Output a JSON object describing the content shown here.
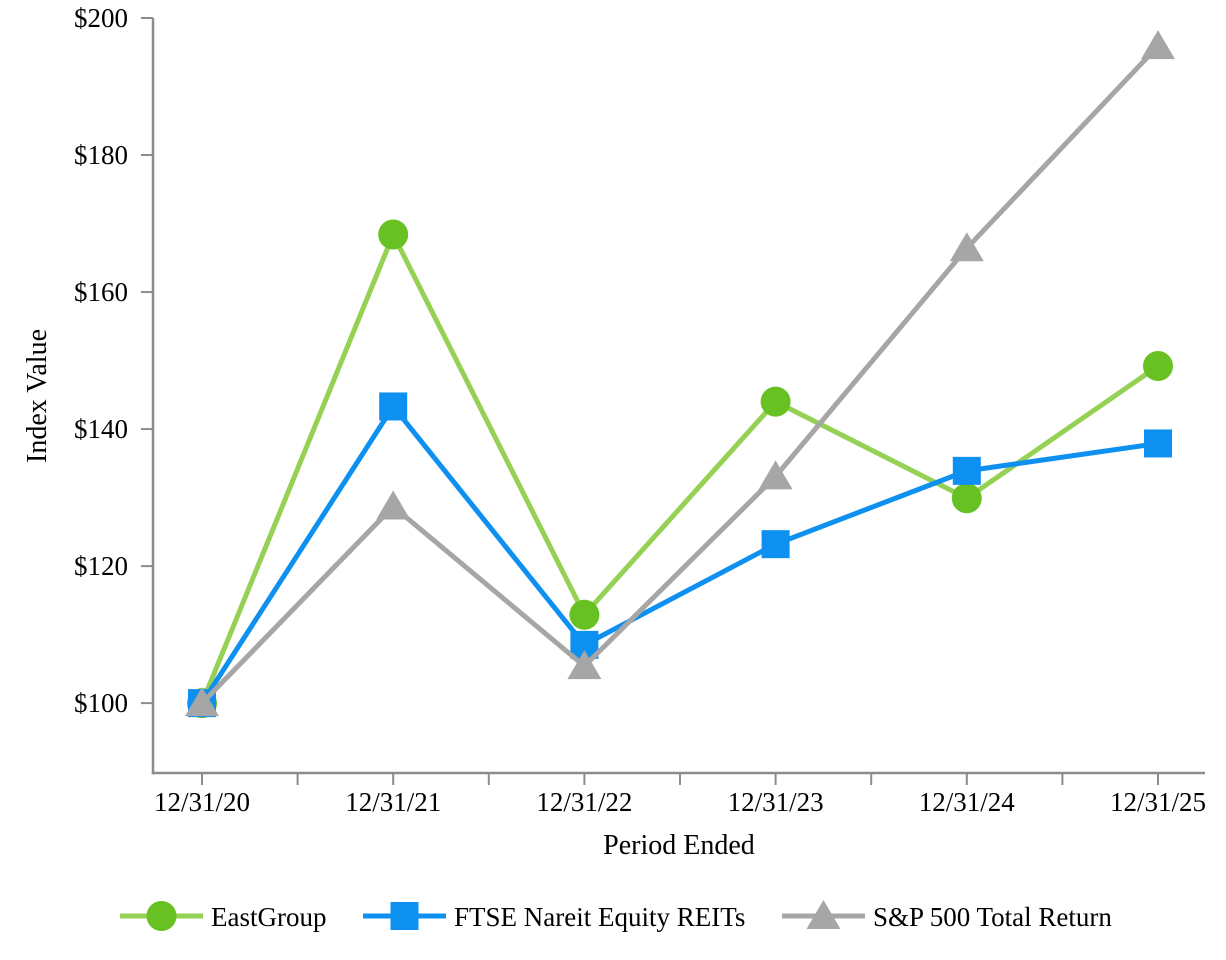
{
  "chart_data": {
    "type": "line",
    "title": "",
    "xlabel": "Period Ended",
    "ylabel": "Index Value",
    "categories": [
      "12/31/20",
      "12/31/21",
      "12/31/22",
      "12/31/23",
      "12/31/24",
      "12/31/25"
    ],
    "series": [
      {
        "name": "EastGroup",
        "marker": "circle",
        "marker_color": "#68c122",
        "line_color": "#95d154",
        "values": [
          100.0,
          168.4,
          112.9,
          144.0,
          129.9,
          149.2
        ]
      },
      {
        "name": "FTSE Nareit Equity REITs",
        "marker": "square",
        "marker_color": "#0e90f0",
        "line_color": "#0e90f0",
        "values": [
          100.0,
          143.3,
          108.5,
          123.2,
          133.9,
          137.9
        ]
      },
      {
        "name": "S&P 500 Total Return",
        "marker": "triangle",
        "marker_color": "#a6a6a6",
        "line_color": "#a6a6a6",
        "values": [
          100.0,
          128.7,
          105.4,
          133.1,
          166.4,
          195.9
        ]
      }
    ],
    "y_ticks": [
      100,
      120,
      140,
      160,
      180,
      200
    ],
    "y_tick_labels": [
      "$100",
      "$120",
      "$140",
      "$160",
      "$180",
      "$200"
    ],
    "ylim": [
      89.8,
      200
    ],
    "x_minor_ticks": true,
    "grid": false,
    "legend_position": "bottom",
    "colors": {
      "axis": "#8c8c8c",
      "text": "#000000",
      "background": "#ffffff"
    }
  }
}
